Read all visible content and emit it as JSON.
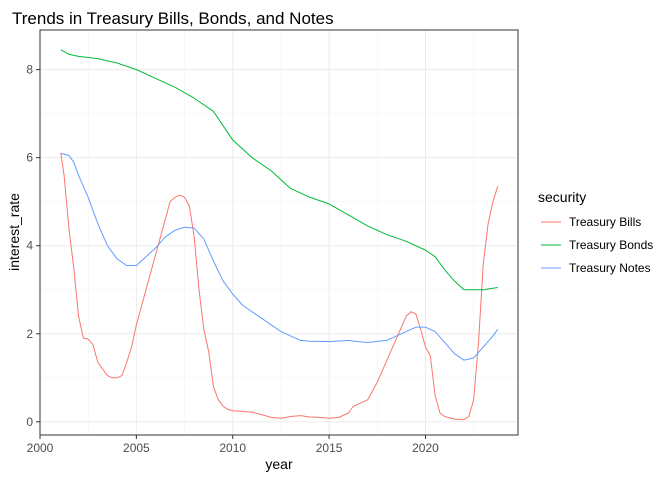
{
  "chart_data": {
    "type": "line",
    "title": "Trends in Treasury Bills, Bonds, and Notes",
    "xlabel": "year",
    "ylabel": "interest_rate",
    "xlim": [
      2000,
      2024.8
    ],
    "ylim": [
      -0.3,
      8.9
    ],
    "x_ticks": [
      2000,
      2005,
      2010,
      2015,
      2020
    ],
    "y_ticks": [
      0,
      2,
      4,
      6,
      8
    ],
    "grid": true,
    "legend": {
      "title": "security",
      "position": "right"
    },
    "series": [
      {
        "name": "Treasury Bills",
        "color": "#F8766D",
        "points": [
          [
            2001.08,
            6.1
          ],
          [
            2001.25,
            5.6
          ],
          [
            2001.5,
            4.4
          ],
          [
            2001.75,
            3.5
          ],
          [
            2002.0,
            2.4
          ],
          [
            2002.25,
            1.9
          ],
          [
            2002.5,
            1.88
          ],
          [
            2002.75,
            1.75
          ],
          [
            2003.0,
            1.35
          ],
          [
            2003.25,
            1.2
          ],
          [
            2003.5,
            1.05
          ],
          [
            2003.75,
            1.0
          ],
          [
            2004.0,
            1.0
          ],
          [
            2004.25,
            1.05
          ],
          [
            2004.5,
            1.35
          ],
          [
            2004.75,
            1.7
          ],
          [
            2005.0,
            2.2
          ],
          [
            2005.5,
            3.0
          ],
          [
            2006.0,
            3.8
          ],
          [
            2006.5,
            4.6
          ],
          [
            2006.75,
            5.0
          ],
          [
            2007.0,
            5.1
          ],
          [
            2007.25,
            5.15
          ],
          [
            2007.5,
            5.1
          ],
          [
            2007.75,
            4.9
          ],
          [
            2008.0,
            4.2
          ],
          [
            2008.25,
            3.0
          ],
          [
            2008.5,
            2.1
          ],
          [
            2008.75,
            1.6
          ],
          [
            2009.0,
            0.8
          ],
          [
            2009.25,
            0.5
          ],
          [
            2009.5,
            0.35
          ],
          [
            2009.75,
            0.28
          ],
          [
            2010.0,
            0.25
          ],
          [
            2011.0,
            0.22
          ],
          [
            2012.0,
            0.1
          ],
          [
            2012.5,
            0.08
          ],
          [
            2013.0,
            0.12
          ],
          [
            2013.5,
            0.14
          ],
          [
            2014.0,
            0.11
          ],
          [
            2014.5,
            0.1
          ],
          [
            2015.0,
            0.08
          ],
          [
            2015.5,
            0.1
          ],
          [
            2016.0,
            0.2
          ],
          [
            2016.25,
            0.35
          ],
          [
            2016.5,
            0.4
          ],
          [
            2017.0,
            0.5
          ],
          [
            2017.5,
            0.9
          ],
          [
            2018.0,
            1.4
          ],
          [
            2018.5,
            1.9
          ],
          [
            2019.0,
            2.4
          ],
          [
            2019.25,
            2.5
          ],
          [
            2019.5,
            2.45
          ],
          [
            2019.75,
            2.1
          ],
          [
            2020.0,
            1.7
          ],
          [
            2020.25,
            1.5
          ],
          [
            2020.5,
            0.6
          ],
          [
            2020.75,
            0.2
          ],
          [
            2021.0,
            0.12
          ],
          [
            2021.5,
            0.06
          ],
          [
            2022.0,
            0.05
          ],
          [
            2022.25,
            0.12
          ],
          [
            2022.5,
            0.5
          ],
          [
            2022.75,
            1.8
          ],
          [
            2023.0,
            3.6
          ],
          [
            2023.25,
            4.5
          ],
          [
            2023.5,
            5.0
          ],
          [
            2023.75,
            5.35
          ]
        ]
      },
      {
        "name": "Treasury Bonds",
        "color": "#00BA38",
        "points": [
          [
            2001.08,
            8.45
          ],
          [
            2001.5,
            8.35
          ],
          [
            2002.0,
            8.3
          ],
          [
            2003.0,
            8.25
          ],
          [
            2004.0,
            8.15
          ],
          [
            2005.0,
            8.0
          ],
          [
            2006.0,
            7.8
          ],
          [
            2007.0,
            7.6
          ],
          [
            2008.0,
            7.35
          ],
          [
            2009.0,
            7.05
          ],
          [
            2010.0,
            6.4
          ],
          [
            2011.0,
            6.0
          ],
          [
            2012.0,
            5.7
          ],
          [
            2013.0,
            5.3
          ],
          [
            2014.0,
            5.1
          ],
          [
            2015.0,
            4.95
          ],
          [
            2016.0,
            4.7
          ],
          [
            2017.0,
            4.45
          ],
          [
            2018.0,
            4.25
          ],
          [
            2019.0,
            4.1
          ],
          [
            2020.0,
            3.9
          ],
          [
            2020.5,
            3.75
          ],
          [
            2021.0,
            3.45
          ],
          [
            2021.5,
            3.2
          ],
          [
            2022.0,
            3.0
          ],
          [
            2023.0,
            3.0
          ],
          [
            2023.75,
            3.05
          ]
        ]
      },
      {
        "name": "Treasury Notes",
        "color": "#619CFF",
        "points": [
          [
            2001.08,
            6.1
          ],
          [
            2001.5,
            6.05
          ],
          [
            2001.75,
            5.9
          ],
          [
            2002.0,
            5.6
          ],
          [
            2002.5,
            5.1
          ],
          [
            2003.0,
            4.5
          ],
          [
            2003.5,
            4.0
          ],
          [
            2004.0,
            3.7
          ],
          [
            2004.5,
            3.55
          ],
          [
            2005.0,
            3.55
          ],
          [
            2005.5,
            3.75
          ],
          [
            2006.0,
            3.95
          ],
          [
            2006.5,
            4.2
          ],
          [
            2007.0,
            4.35
          ],
          [
            2007.5,
            4.42
          ],
          [
            2008.0,
            4.4
          ],
          [
            2008.5,
            4.15
          ],
          [
            2009.0,
            3.65
          ],
          [
            2009.5,
            3.2
          ],
          [
            2010.0,
            2.9
          ],
          [
            2010.5,
            2.65
          ],
          [
            2011.0,
            2.5
          ],
          [
            2011.5,
            2.35
          ],
          [
            2012.0,
            2.2
          ],
          [
            2012.5,
            2.05
          ],
          [
            2013.0,
            1.95
          ],
          [
            2013.5,
            1.85
          ],
          [
            2014.0,
            1.83
          ],
          [
            2015.0,
            1.82
          ],
          [
            2016.0,
            1.85
          ],
          [
            2016.5,
            1.82
          ],
          [
            2017.0,
            1.8
          ],
          [
            2018.0,
            1.85
          ],
          [
            2018.5,
            1.95
          ],
          [
            2019.0,
            2.05
          ],
          [
            2019.5,
            2.15
          ],
          [
            2020.0,
            2.15
          ],
          [
            2020.5,
            2.05
          ],
          [
            2021.0,
            1.8
          ],
          [
            2021.5,
            1.55
          ],
          [
            2022.0,
            1.4
          ],
          [
            2022.5,
            1.45
          ],
          [
            2023.0,
            1.7
          ],
          [
            2023.5,
            1.95
          ],
          [
            2023.75,
            2.1
          ]
        ]
      }
    ]
  }
}
